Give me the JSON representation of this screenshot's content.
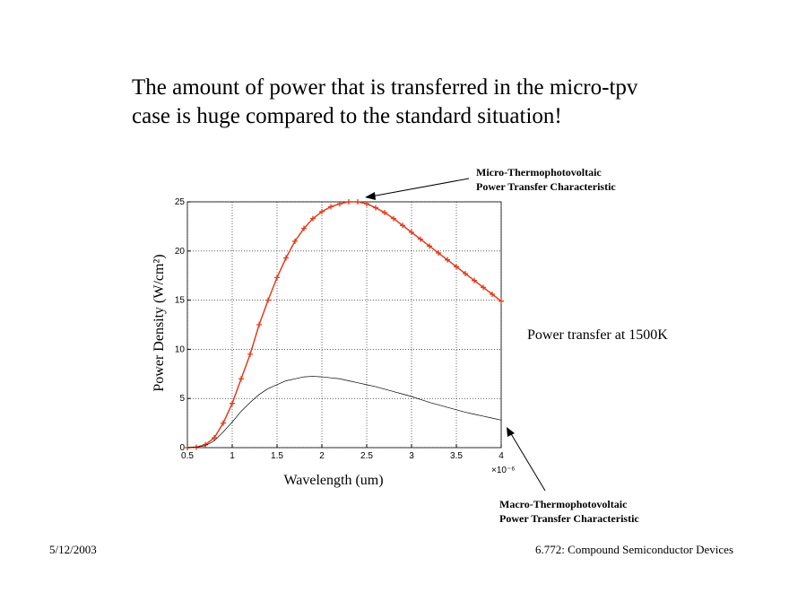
{
  "slide": {
    "title_lines": [
      "The amount of power that is transferred in the micro-tpv",
      "case is huge compared to the standard situation!"
    ],
    "note": "Power transfer at 1500K",
    "footer_left": "5/12/2003",
    "footer_right": "6.772: Compound Semiconductor Devices"
  },
  "chart_data": {
    "type": "line",
    "x_label": "Wavelength (um)",
    "y_label": "Power Density (W/cm²)",
    "x_multiplier": "×10⁻⁶",
    "x": [
      0.5,
      0.6,
      0.7,
      0.8,
      0.9,
      1.0,
      1.1,
      1.2,
      1.3,
      1.4,
      1.5,
      1.6,
      1.7,
      1.8,
      1.9,
      2.0,
      2.1,
      2.2,
      2.3,
      2.4,
      2.5,
      2.6,
      2.7,
      2.8,
      2.9,
      3.0,
      3.1,
      3.2,
      3.3,
      3.4,
      3.5,
      3.6,
      3.7,
      3.8,
      3.9,
      4.0
    ],
    "series": [
      {
        "color": "#e03c1e",
        "marker": "+",
        "values": [
          0,
          0.05,
          0.3,
          1.0,
          2.5,
          4.5,
          7,
          9.5,
          12.5,
          15,
          17.3,
          19.3,
          21,
          22.3,
          23.3,
          24.0,
          24.5,
          24.8,
          25.0,
          25.0,
          24.8,
          24.4,
          23.9,
          23.3,
          22.6,
          21.9,
          21.2,
          20.5,
          19.8,
          19.1,
          18.4,
          17.7,
          17.0,
          16.3,
          15.6,
          14.9
        ]
      },
      {
        "color": "#000000",
        "values": [
          0,
          0.05,
          0.2,
          0.7,
          1.6,
          2.6,
          3.7,
          4.6,
          5.4,
          6.0,
          6.4,
          6.8,
          7.0,
          7.2,
          7.25,
          7.2,
          7.1,
          7.0,
          6.8,
          6.6,
          6.4,
          6.2,
          5.95,
          5.7,
          5.45,
          5.2,
          4.9,
          4.6,
          4.35,
          4.1,
          3.85,
          3.6,
          3.4,
          3.2,
          3.0,
          2.8
        ]
      }
    ],
    "xlim": [
      0.5,
      4
    ],
    "ylim": [
      0,
      25
    ],
    "xticks": [
      0.5,
      1,
      1.5,
      2,
      2.5,
      3,
      3.5,
      4
    ],
    "yticks": [
      0,
      5,
      10,
      15,
      20,
      25
    ],
    "grid": true,
    "annotations": [
      {
        "lines": [
          "Micro-Thermophotovoltaic",
          "Power Transfer Characteristic"
        ]
      },
      {
        "lines": [
          "Macro-Thermophotovoltaic",
          "Power Transfer Characteristic"
        ]
      }
    ]
  }
}
